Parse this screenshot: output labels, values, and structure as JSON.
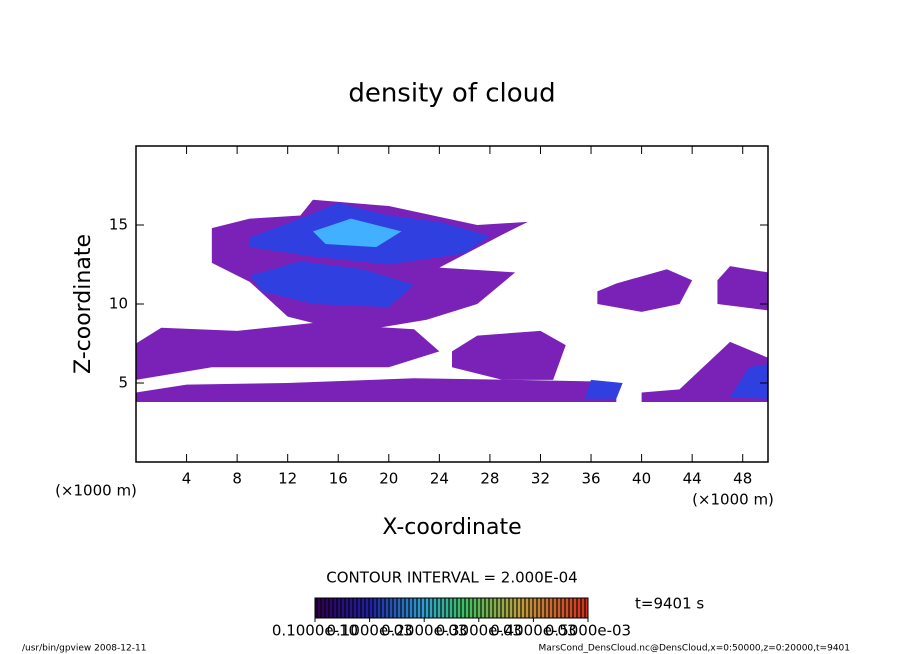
{
  "chart_data": {
    "type": "contour",
    "title": "density of cloud",
    "xlabel": "X-coordinate",
    "ylabel": "Z-coordinate",
    "xunit": "(×1000 m)",
    "yunit": "(×1000 m)",
    "xlim": [
      0,
      50
    ],
    "ylim": [
      0,
      20
    ],
    "xticks": [
      4,
      8,
      12,
      16,
      20,
      24,
      28,
      32,
      36,
      40,
      44,
      48
    ],
    "yticks": [
      5,
      10,
      15
    ],
    "regions": [
      {
        "level": 0.0001,
        "color": "#7a22b8",
        "x": [
          0,
          38,
          38,
          36,
          30,
          22,
          12,
          4,
          0
        ],
        "z": [
          3.8,
          3.8,
          4.8,
          5.1,
          5.2,
          5.3,
          5.0,
          4.9,
          4.4
        ]
      },
      {
        "level": 0.0001,
        "color": "#7a22b8",
        "x": [
          40,
          50,
          50,
          47,
          43,
          40
        ],
        "z": [
          3.8,
          3.8,
          6.6,
          7.6,
          4.6,
          4.4
        ]
      },
      {
        "level": 0.0001,
        "color": "#7a22b8",
        "x": [
          0,
          6,
          12,
          20,
          24,
          22,
          14,
          8,
          2,
          0
        ],
        "z": [
          5.2,
          6.0,
          6.0,
          6.0,
          7.0,
          8.4,
          8.8,
          8.3,
          8.5,
          7.5
        ]
      },
      {
        "level": 0.0001,
        "color": "#7a22b8",
        "x": [
          6,
          9,
          13,
          14,
          20,
          27,
          31,
          29,
          24,
          30,
          27,
          23,
          17,
          12,
          9,
          6
        ],
        "z": [
          14.8,
          15.4,
          15.6,
          16.6,
          16.2,
          15.0,
          15.2,
          14.4,
          12.3,
          12.0,
          10.0,
          9.0,
          8.2,
          9.2,
          11.4,
          12.6
        ]
      },
      {
        "level": 0.0001,
        "color": "#7a22b8",
        "x": [
          25,
          29,
          33,
          34,
          32,
          27,
          25
        ],
        "z": [
          6.0,
          5.2,
          5.2,
          7.4,
          8.3,
          8.0,
          7.0
        ]
      },
      {
        "level": 0.0001,
        "color": "#7a22b8",
        "x": [
          36.5,
          40,
          43,
          44,
          42,
          38,
          36.5
        ],
        "z": [
          10.0,
          9.5,
          10.0,
          11.5,
          12.2,
          11.3,
          10.8
        ]
      },
      {
        "level": 0.0001,
        "color": "#7a22b8",
        "x": [
          46,
          50,
          50,
          47,
          46
        ],
        "z": [
          10.0,
          9.6,
          12.0,
          12.4,
          11.5
        ]
      },
      {
        "level": 0.0002,
        "color": "#3040e0",
        "x": [
          9,
          13,
          16,
          20,
          24,
          28,
          26,
          20,
          14,
          9
        ],
        "z": [
          14.2,
          15.4,
          16.4,
          15.6,
          15.2,
          14.3,
          13.2,
          12.5,
          13.0,
          13.6
        ]
      },
      {
        "level": 0.0002,
        "color": "#3040e0",
        "x": [
          9,
          13,
          18,
          22,
          20,
          14,
          10
        ],
        "z": [
          11.8,
          12.7,
          12.2,
          11.2,
          9.8,
          10.0,
          10.8
        ]
      },
      {
        "level": 0.0003,
        "color": "#40b0ff",
        "x": [
          14,
          17,
          21,
          19,
          15
        ],
        "z": [
          14.6,
          15.4,
          14.6,
          13.6,
          13.8
        ]
      },
      {
        "level": 0.0002,
        "color": "#3040e0",
        "x": [
          35.5,
          38,
          38.5,
          36
        ],
        "z": [
          4.0,
          4.0,
          5.0,
          5.2
        ]
      },
      {
        "level": 0.0002,
        "color": "#3040e0",
        "x": [
          47,
          50,
          50,
          48.5
        ],
        "z": [
          4.1,
          4.0,
          6.2,
          6.0
        ]
      }
    ],
    "contour_interval": "CONTOUR INTERVAL = 2.000E-04",
    "time_label": "t=9401 s",
    "colorbar_ticks": [
      {
        "value": 1e-11,
        "label": "0.1000e-10"
      },
      {
        "value": 0.0001,
        "label": "0.1000e-03"
      },
      {
        "value": 0.0002,
        "label": "0.2000e-03"
      },
      {
        "value": 0.0003,
        "label": "0.3000e-03"
      },
      {
        "value": 0.0004,
        "label": "0.4000e-03"
      },
      {
        "value": 0.0005,
        "label": "0.5000e-03"
      }
    ],
    "footer_left": "/usr/bin/gpview  2008-12-11",
    "footer_right": "MarsCond_DensCloud.nc@DensCloud,x=0:50000,z=0:20000,t=9401"
  }
}
